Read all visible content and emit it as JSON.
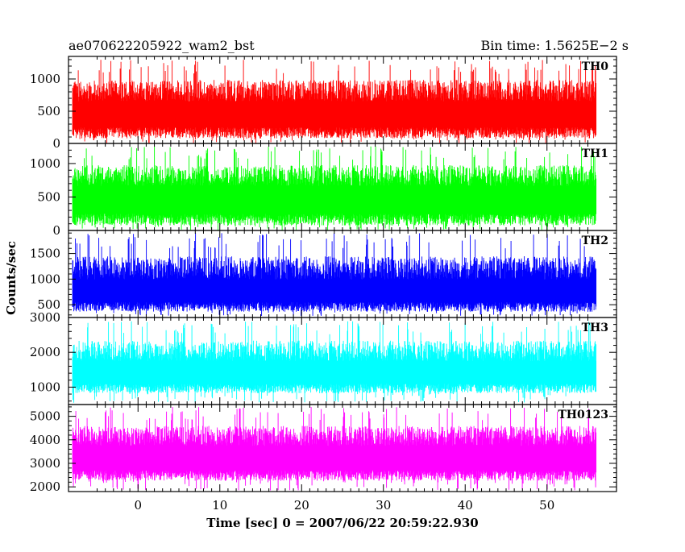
{
  "header": {
    "title": "ae070622205922_wam2_bst",
    "bin_time": "Bin time: 1.5625E−2 s"
  },
  "chart_data": {
    "type": "line",
    "title": "ae070622205922_wam2_bst",
    "xlabel": "Time [sec] 0 = 2007/06/22 20:59:22.930",
    "ylabel": "Counts/sec",
    "xlim": [
      -8.5,
      58.5
    ],
    "data_xrange": [
      -8,
      56
    ],
    "xticks": [
      0,
      10,
      20,
      30,
      40,
      50
    ],
    "panels": [
      {
        "name": "TH0",
        "color": "#ff0000",
        "ylim": [
          0,
          1350
        ],
        "yticks": [
          0,
          500,
          1000
        ],
        "baseline": 250,
        "mean": 560,
        "low": 0,
        "high": 1300
      },
      {
        "name": "TH1",
        "color": "#00ff00",
        "ylim": [
          0,
          1300
        ],
        "yticks": [
          0,
          500,
          1000
        ],
        "baseline": 250,
        "mean": 570,
        "low": 0,
        "high": 1260
      },
      {
        "name": "TH2",
        "color": "#0000ff",
        "ylim": [
          250,
          1950
        ],
        "yticks": [
          500,
          1000,
          1500
        ],
        "baseline": 550,
        "mean": 890,
        "low": 280,
        "high": 1900
      },
      {
        "name": "TH3",
        "color": "#00ffff",
        "ylim": [
          500,
          3000
        ],
        "yticks": [
          1000,
          2000,
          3000
        ],
        "baseline": 1100,
        "mean": 1600,
        "low": 550,
        "high": 2900
      },
      {
        "name": "TH0123",
        "color": "#ff00ff",
        "ylim": [
          1800,
          5500
        ],
        "yticks": [
          2000,
          3000,
          4000,
          5000
        ],
        "baseline": 2700,
        "mean": 3500,
        "low": 1850,
        "high": 5400
      }
    ]
  }
}
